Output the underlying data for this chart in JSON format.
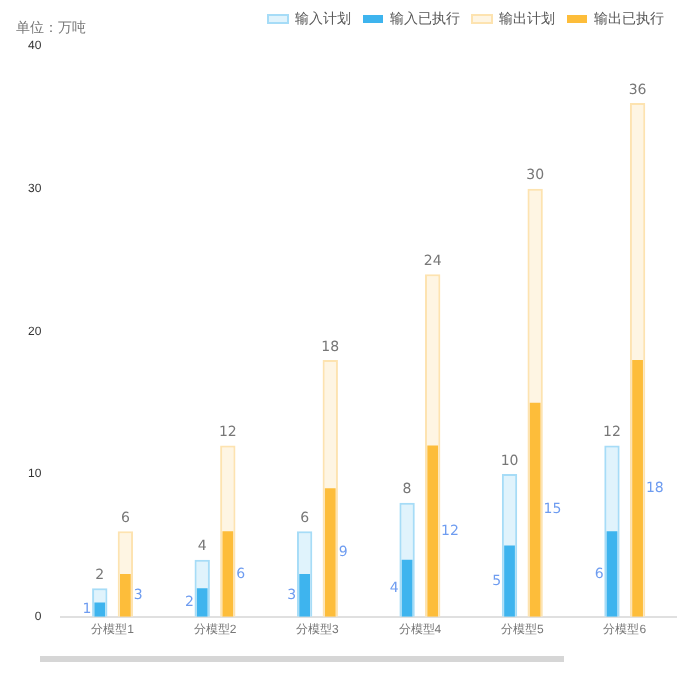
{
  "chart_data": {
    "type": "bar",
    "ylabel": "单位：万吨",
    "categories": [
      "分模型1",
      "分模型2",
      "分模型3",
      "分模型4",
      "分模型5",
      "分模型6"
    ],
    "series": [
      {
        "name": "输入计划",
        "color": "#a6dcf7",
        "values": [
          2,
          4,
          6,
          8,
          10,
          12
        ]
      },
      {
        "name": "输入已执行",
        "color": "#3eb4ee",
        "values": [
          1,
          2,
          3,
          4,
          5,
          6
        ]
      },
      {
        "name": "输出计划",
        "color": "#fde3b0",
        "values": [
          6,
          12,
          18,
          24,
          30,
          36
        ]
      },
      {
        "name": "输出已执行",
        "color": "#fdbd3a",
        "values": [
          3,
          6,
          9,
          12,
          15,
          18
        ]
      }
    ],
    "ylim": [
      0,
      40
    ],
    "yticks": [
      0,
      10,
      20,
      30,
      40
    ],
    "grid": false,
    "legend": "top right",
    "data_labels": true
  }
}
